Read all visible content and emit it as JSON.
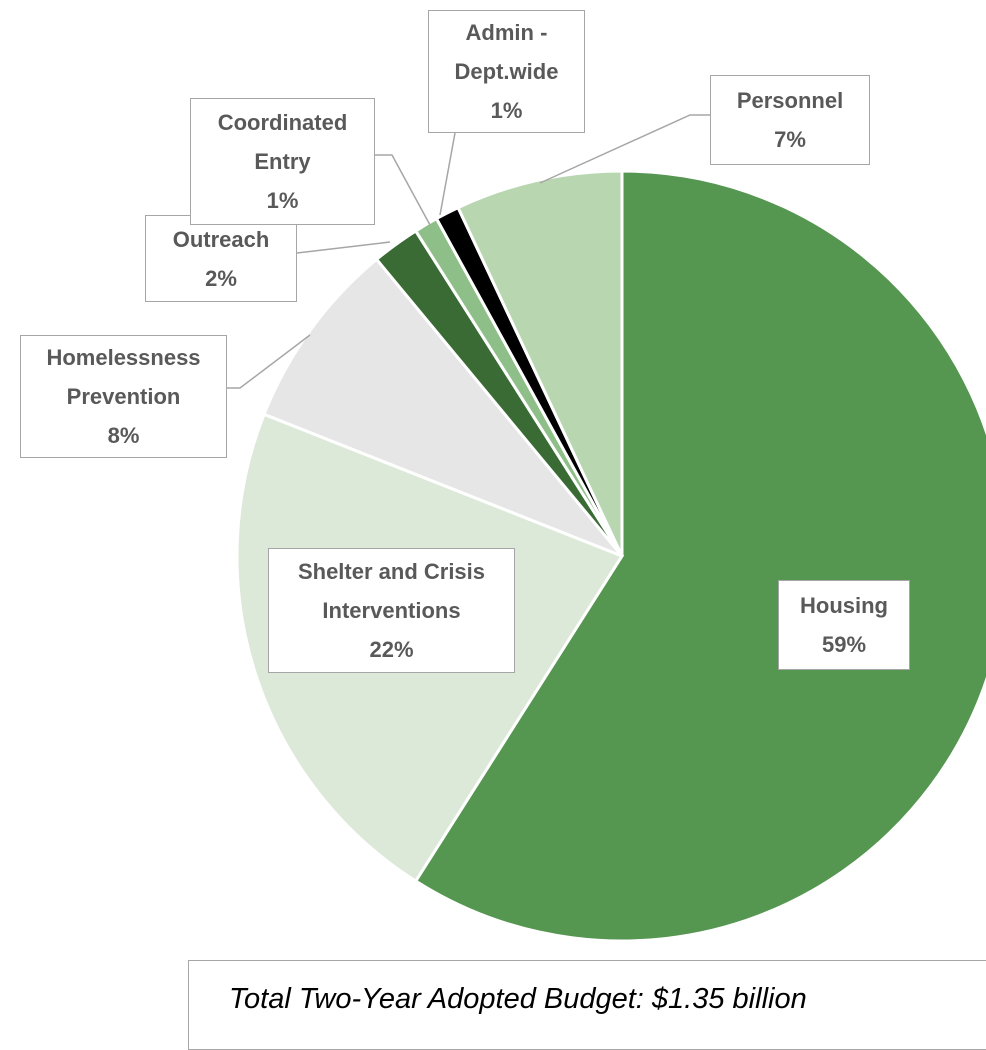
{
  "chart_data": {
    "type": "pie",
    "categories": [
      "Housing",
      "Shelter and Crisis Interventions",
      "Homelessness Prevention",
      "Outreach",
      "Coordinated Entry",
      "Admin - Dept.wide",
      "Personnel"
    ],
    "values": [
      59,
      22,
      8,
      2,
      1,
      1,
      7
    ],
    "value_labels": [
      "59%",
      "22%",
      "8%",
      "2%",
      "1%",
      "1%",
      "7%"
    ],
    "colors": [
      "#559650",
      "#dce9d8",
      "#e6e6e6",
      "#3a6b35",
      "#8fbf88",
      "#000000",
      "#b8d6b0"
    ],
    "annotation": "Total Two-Year Adopted Budget: $1.35 billion"
  }
}
